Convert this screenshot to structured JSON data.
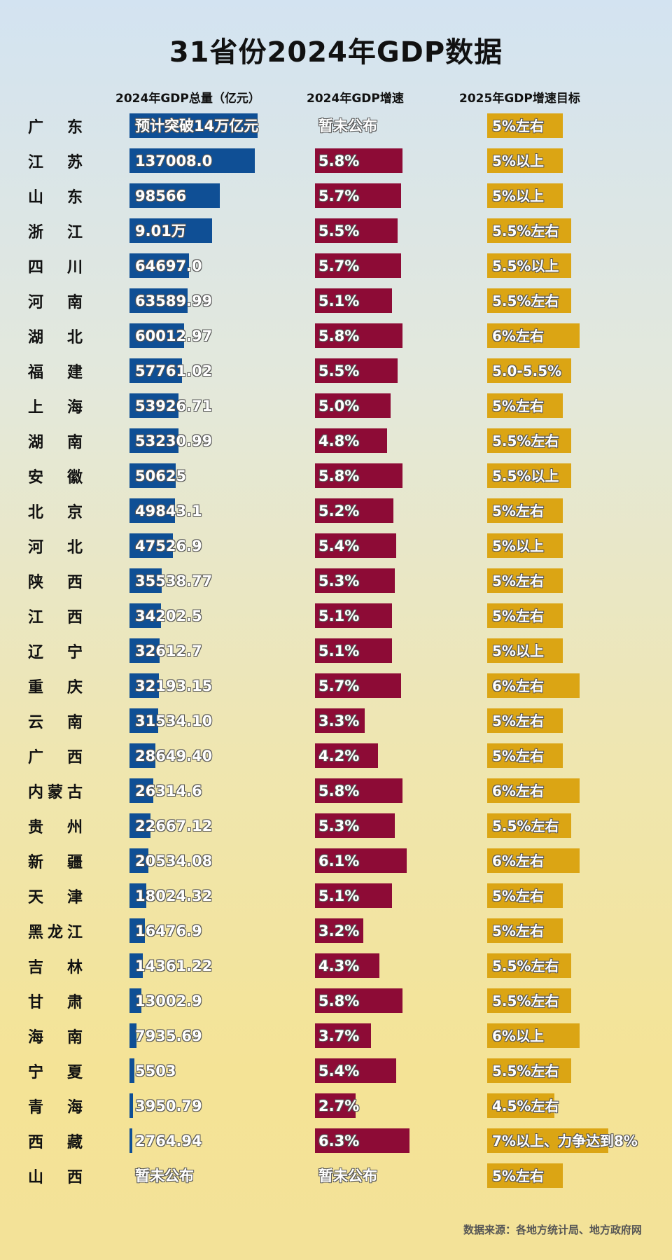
{
  "title": "31省份2024年GDP数据",
  "headers": [
    "2024年GDP总量（亿元）",
    "2024年GDP增速",
    "2025年GDP增速目标"
  ],
  "source": "数据来源：各地方统计局、地方政府网",
  "colors": {
    "gdp": "#0f4f95",
    "growth": "#8d0b36",
    "target": "#dba514"
  },
  "chart_data": {
    "type": "bar",
    "orientation": "horizontal",
    "title": "31省份2024年GDP数据",
    "columns": [
      "2024年GDP总量（亿元）",
      "2024年GDP增速",
      "2025年GDP增速目标"
    ],
    "rows": [
      {
        "name": "广东",
        "gdp": 140000,
        "gdp_label": "预计突破14万亿元",
        "growth": null,
        "growth_label": "暂未公布",
        "target": 5,
        "target_label": "5%左右"
      },
      {
        "name": "江苏",
        "gdp": 137008.0,
        "gdp_label": "137008.0",
        "growth": 5.8,
        "growth_label": "5.8%",
        "target": 5,
        "target_label": "5%以上"
      },
      {
        "name": "山东",
        "gdp": 98566,
        "gdp_label": "98566",
        "growth": 5.7,
        "growth_label": "5.7%",
        "target": 5,
        "target_label": "5%以上"
      },
      {
        "name": "浙江",
        "gdp": 90100,
        "gdp_label": "9.01万",
        "growth": 5.5,
        "growth_label": "5.5%",
        "target": 5.5,
        "target_label": "5.5%左右"
      },
      {
        "name": "四川",
        "gdp": 64697.0,
        "gdp_label": "64697.0",
        "growth": 5.7,
        "growth_label": "5.7%",
        "target": 5.5,
        "target_label": "5.5%以上"
      },
      {
        "name": "河南",
        "gdp": 63589.99,
        "gdp_label": "63589.99",
        "growth": 5.1,
        "growth_label": "5.1%",
        "target": 5.5,
        "target_label": "5.5%左右"
      },
      {
        "name": "湖北",
        "gdp": 60012.97,
        "gdp_label": "60012.97",
        "growth": 5.8,
        "growth_label": "5.8%",
        "target": 6,
        "target_label": "6%左右"
      },
      {
        "name": "福建",
        "gdp": 57761.02,
        "gdp_label": "57761.02",
        "growth": 5.5,
        "growth_label": "5.5%",
        "target": 5.5,
        "target_label": "5.0-5.5%"
      },
      {
        "name": "上海",
        "gdp": 53926.71,
        "gdp_label": "53926.71",
        "growth": 5.0,
        "growth_label": "5.0%",
        "target": 5,
        "target_label": "5%左右"
      },
      {
        "name": "湖南",
        "gdp": 53230.99,
        "gdp_label": "53230.99",
        "growth": 4.8,
        "growth_label": "4.8%",
        "target": 5.5,
        "target_label": "5.5%左右"
      },
      {
        "name": "安徽",
        "gdp": 50625,
        "gdp_label": "50625",
        "growth": 5.8,
        "growth_label": "5.8%",
        "target": 5.5,
        "target_label": "5.5%以上"
      },
      {
        "name": "北京",
        "gdp": 49843.1,
        "gdp_label": "49843.1",
        "growth": 5.2,
        "growth_label": "5.2%",
        "target": 5,
        "target_label": "5%左右"
      },
      {
        "name": "河北",
        "gdp": 47526.9,
        "gdp_label": "47526.9",
        "growth": 5.4,
        "growth_label": "5.4%",
        "target": 5,
        "target_label": "5%以上"
      },
      {
        "name": "陕西",
        "gdp": 35538.77,
        "gdp_label": "35538.77",
        "growth": 5.3,
        "growth_label": "5.3%",
        "target": 5,
        "target_label": "5%左右"
      },
      {
        "name": "江西",
        "gdp": 34202.5,
        "gdp_label": "34202.5",
        "growth": 5.1,
        "growth_label": "5.1%",
        "target": 5,
        "target_label": "5%左右"
      },
      {
        "name": "辽宁",
        "gdp": 32612.7,
        "gdp_label": "32612.7",
        "growth": 5.1,
        "growth_label": "5.1%",
        "target": 5,
        "target_label": "5%以上"
      },
      {
        "name": "重庆",
        "gdp": 32193.15,
        "gdp_label": "32193.15",
        "growth": 5.7,
        "growth_label": "5.7%",
        "target": 6,
        "target_label": "6%左右"
      },
      {
        "name": "云南",
        "gdp": 31534.1,
        "gdp_label": "31534.10",
        "growth": 3.3,
        "growth_label": "3.3%",
        "target": 5,
        "target_label": "5%左右"
      },
      {
        "name": "广西",
        "gdp": 28649.4,
        "gdp_label": "28649.40",
        "growth": 4.2,
        "growth_label": "4.2%",
        "target": 5,
        "target_label": "5%左右"
      },
      {
        "name": "内蒙古",
        "gdp": 26314.6,
        "gdp_label": "26314.6",
        "growth": 5.8,
        "growth_label": "5.8%",
        "target": 6,
        "target_label": "6%左右"
      },
      {
        "name": "贵州",
        "gdp": 22667.12,
        "gdp_label": "22667.12",
        "growth": 5.3,
        "growth_label": "5.3%",
        "target": 5.5,
        "target_label": "5.5%左右"
      },
      {
        "name": "新疆",
        "gdp": 20534.08,
        "gdp_label": "20534.08",
        "growth": 6.1,
        "growth_label": "6.1%",
        "target": 6,
        "target_label": "6%左右"
      },
      {
        "name": "天津",
        "gdp": 18024.32,
        "gdp_label": "18024.32",
        "growth": 5.1,
        "growth_label": "5.1%",
        "target": 5,
        "target_label": "5%左右"
      },
      {
        "name": "黑龙江",
        "gdp": 16476.9,
        "gdp_label": "16476.9",
        "growth": 3.2,
        "growth_label": "3.2%",
        "target": 5,
        "target_label": "5%左右"
      },
      {
        "name": "吉林",
        "gdp": 14361.22,
        "gdp_label": "14361.22",
        "growth": 4.3,
        "growth_label": "4.3%",
        "target": 5.5,
        "target_label": "5.5%左右"
      },
      {
        "name": "甘肃",
        "gdp": 13002.9,
        "gdp_label": "13002.9",
        "growth": 5.8,
        "growth_label": "5.8%",
        "target": 5.5,
        "target_label": "5.5%左右"
      },
      {
        "name": "海南",
        "gdp": 7935.69,
        "gdp_label": "7935.69",
        "growth": 3.7,
        "growth_label": "3.7%",
        "target": 6,
        "target_label": "6%以上"
      },
      {
        "name": "宁夏",
        "gdp": 5503,
        "gdp_label": "5503",
        "growth": 5.4,
        "growth_label": "5.4%",
        "target": 5.5,
        "target_label": "5.5%左右"
      },
      {
        "name": "青海",
        "gdp": 3950.79,
        "gdp_label": "3950.79",
        "growth": 2.7,
        "growth_label": "2.7%",
        "target": 4.5,
        "target_label": "4.5%左右"
      },
      {
        "name": "西藏",
        "gdp": 2764.94,
        "gdp_label": "2764.94",
        "growth": 6.3,
        "growth_label": "6.3%",
        "target": 7,
        "target_label": "7%以上、力争达到8%"
      },
      {
        "name": "山西",
        "gdp": null,
        "gdp_label": "暂未公布",
        "growth": null,
        "growth_label": "暂未公布",
        "target": 5,
        "target_label": "5%左右"
      }
    ]
  }
}
